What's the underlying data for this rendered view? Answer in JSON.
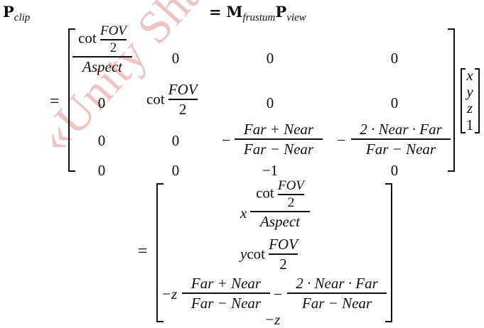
{
  "watermark": "«Unity Shader",
  "line1": {
    "lhs": "P",
    "lhs_sub": "clip",
    "eq": "=",
    "rhs1": "M",
    "rhs1_sub": "frustum",
    "rhs2": "P",
    "rhs2_sub": "view"
  },
  "matrix": {
    "cot": "cot",
    "fov": "FOV",
    "two": "2",
    "aspect": "Aspect",
    "zero": "0",
    "minus_one": "−1",
    "minus": "−",
    "far_plus_near": "Far + Near",
    "far_minus_near": "Far − Near",
    "two_near_far": "2 · Near · Far"
  },
  "vector": [
    "x",
    "y",
    "z",
    "1"
  ],
  "result": {
    "x": "x",
    "y": "y",
    "minus_z": "−z",
    "minus_z_bottom": "−z"
  }
}
